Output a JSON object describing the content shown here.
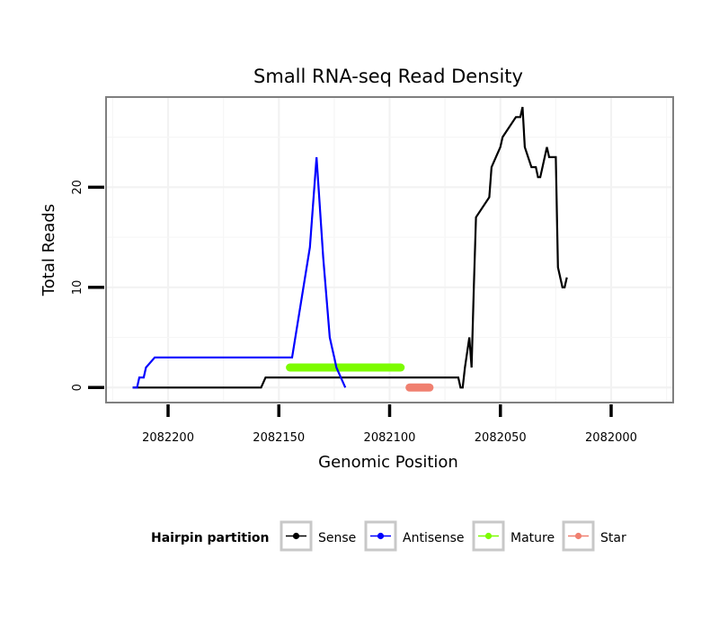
{
  "chart_data": {
    "type": "line",
    "title": "Small RNA-seq Read Density",
    "xlabel": "Genomic Position",
    "ylabel": "Total Reads",
    "x_reversed": true,
    "xlim": [
      2082228,
      2081972
    ],
    "ylim": [
      -1.5,
      29
    ],
    "x_ticks": [
      2082200,
      2082150,
      2082100,
      2082050,
      2082000
    ],
    "x_tick_labels": [
      "2082200",
      "2082150",
      "2082100",
      "2082050",
      "2082000"
    ],
    "y_ticks": [
      0,
      10,
      20
    ],
    "y_tick_labels": [
      "0",
      "10",
      "20"
    ],
    "grid": true,
    "legend": {
      "title": "Hairpin partition",
      "position": "bottom",
      "entries": [
        "Sense",
        "Antisense",
        "Mature",
        "Star"
      ]
    },
    "series": [
      {
        "name": "Sense",
        "color": "#000000",
        "x": [
          2082216,
          2082158,
          2082156,
          2082069,
          2082068,
          2082067,
          2082066,
          2082064,
          2082063,
          2082062,
          2082061,
          2082055,
          2082054,
          2082050,
          2082049,
          2082043,
          2082042,
          2082041,
          2082040,
          2082039,
          2082036,
          2082035,
          2082034,
          2082033,
          2082032,
          2082031,
          2082029,
          2082028,
          2082027,
          2082025,
          2082024,
          2082022,
          2082021,
          2082020
        ],
        "y": [
          0,
          0,
          1,
          1,
          0,
          0,
          2,
          5,
          2,
          10,
          17,
          19,
          22,
          24,
          25,
          27,
          27,
          27,
          28,
          24,
          22,
          22,
          22,
          21,
          21,
          22,
          24,
          23,
          23,
          23,
          12,
          10,
          10,
          11
        ]
      },
      {
        "name": "Mature",
        "color": "#7cfc00",
        "x": [
          2082145,
          2082095
        ],
        "y": [
          2,
          2
        ]
      },
      {
        "name": "Star",
        "color": "#f08070",
        "x": [
          2082091,
          2082082
        ],
        "y": [
          0,
          0
        ]
      },
      {
        "name": "Antisense",
        "color": "#0000ff",
        "x": [
          2082216,
          2082215,
          2082214,
          2082213,
          2082212,
          2082211,
          2082210,
          2082206,
          2082195,
          2082144,
          2082136,
          2082133,
          2082130,
          2082127,
          2082126,
          2082125,
          2082124,
          2082120
        ],
        "y": [
          0,
          0,
          0,
          1,
          1,
          1,
          2,
          3,
          3,
          3,
          14,
          23,
          13,
          5,
          4,
          3,
          2,
          0
        ]
      }
    ]
  }
}
